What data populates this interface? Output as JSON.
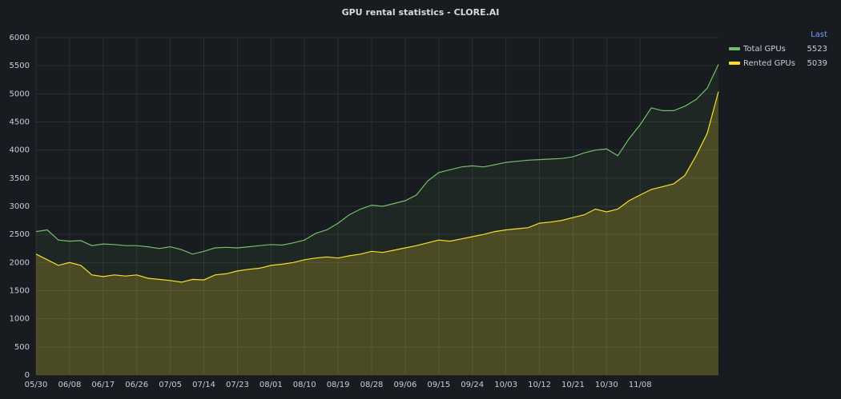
{
  "chart_data": {
    "type": "area",
    "title": "GPU rental statistics - CLORE.AI",
    "legend_header": "Last",
    "x": [
      "05/30",
      "06/02",
      "06/05",
      "06/08",
      "06/11",
      "06/14",
      "06/17",
      "06/20",
      "06/23",
      "06/26",
      "06/29",
      "07/02",
      "07/05",
      "07/08",
      "07/11",
      "07/14",
      "07/17",
      "07/20",
      "07/23",
      "07/26",
      "07/29",
      "08/01",
      "08/04",
      "08/07",
      "08/10",
      "08/13",
      "08/16",
      "08/19",
      "08/22",
      "08/25",
      "08/28",
      "08/31",
      "09/03",
      "09/06",
      "09/09",
      "09/12",
      "09/15",
      "09/18",
      "09/21",
      "09/24",
      "09/27",
      "09/30",
      "10/03",
      "10/06",
      "10/09",
      "10/12",
      "10/15",
      "10/18",
      "10/21",
      "10/24",
      "10/27",
      "10/30",
      "11/02",
      "11/05",
      "11/08",
      "11/11",
      "11/14",
      "11/17",
      "11/20",
      "11/23",
      "11/26",
      "11/29"
    ],
    "xticks": [
      "05/30",
      "06/08",
      "06/17",
      "06/26",
      "07/05",
      "07/14",
      "07/23",
      "08/01",
      "08/10",
      "08/19",
      "08/28",
      "09/06",
      "09/15",
      "09/24",
      "10/03",
      "10/12",
      "10/21",
      "10/30",
      "11/08"
    ],
    "series": [
      {
        "name": "Total GPUs",
        "color": "#73bf69",
        "values": [
          2550,
          2580,
          2400,
          2380,
          2390,
          2300,
          2330,
          2320,
          2300,
          2300,
          2280,
          2250,
          2280,
          2230,
          2150,
          2200,
          2260,
          2270,
          2260,
          2280,
          2300,
          2320,
          2310,
          2350,
          2400,
          2520,
          2580,
          2700,
          2850,
          2950,
          3020,
          3000,
          3050,
          3100,
          3200,
          3450,
          3600,
          3650,
          3700,
          3720,
          3700,
          3740,
          3780,
          3800,
          3820,
          3830,
          3840,
          3850,
          3880,
          3950,
          4000,
          4020,
          3900,
          4200,
          4450,
          4750,
          4700,
          4700,
          4780,
          4900,
          5100,
          5523
        ]
      },
      {
        "name": "Rented GPUs",
        "color": "#fade2a",
        "values": [
          2150,
          2050,
          1950,
          2000,
          1950,
          1780,
          1750,
          1780,
          1760,
          1780,
          1720,
          1700,
          1680,
          1650,
          1700,
          1690,
          1780,
          1800,
          1850,
          1880,
          1900,
          1950,
          1970,
          2000,
          2050,
          2080,
          2100,
          2080,
          2120,
          2150,
          2200,
          2180,
          2220,
          2260,
          2300,
          2350,
          2400,
          2380,
          2420,
          2460,
          2500,
          2550,
          2580,
          2600,
          2620,
          2700,
          2720,
          2750,
          2800,
          2850,
          2950,
          2900,
          2950,
          3100,
          3200,
          3300,
          3350,
          3400,
          3550,
          3900,
          4300,
          5039
        ]
      }
    ],
    "ylim": [
      0,
      6000
    ],
    "yticks": [
      0,
      500,
      1000,
      1500,
      2000,
      2500,
      3000,
      3500,
      4000,
      4500,
      5000,
      5500,
      6000
    ],
    "grid": true,
    "legend": "right"
  }
}
